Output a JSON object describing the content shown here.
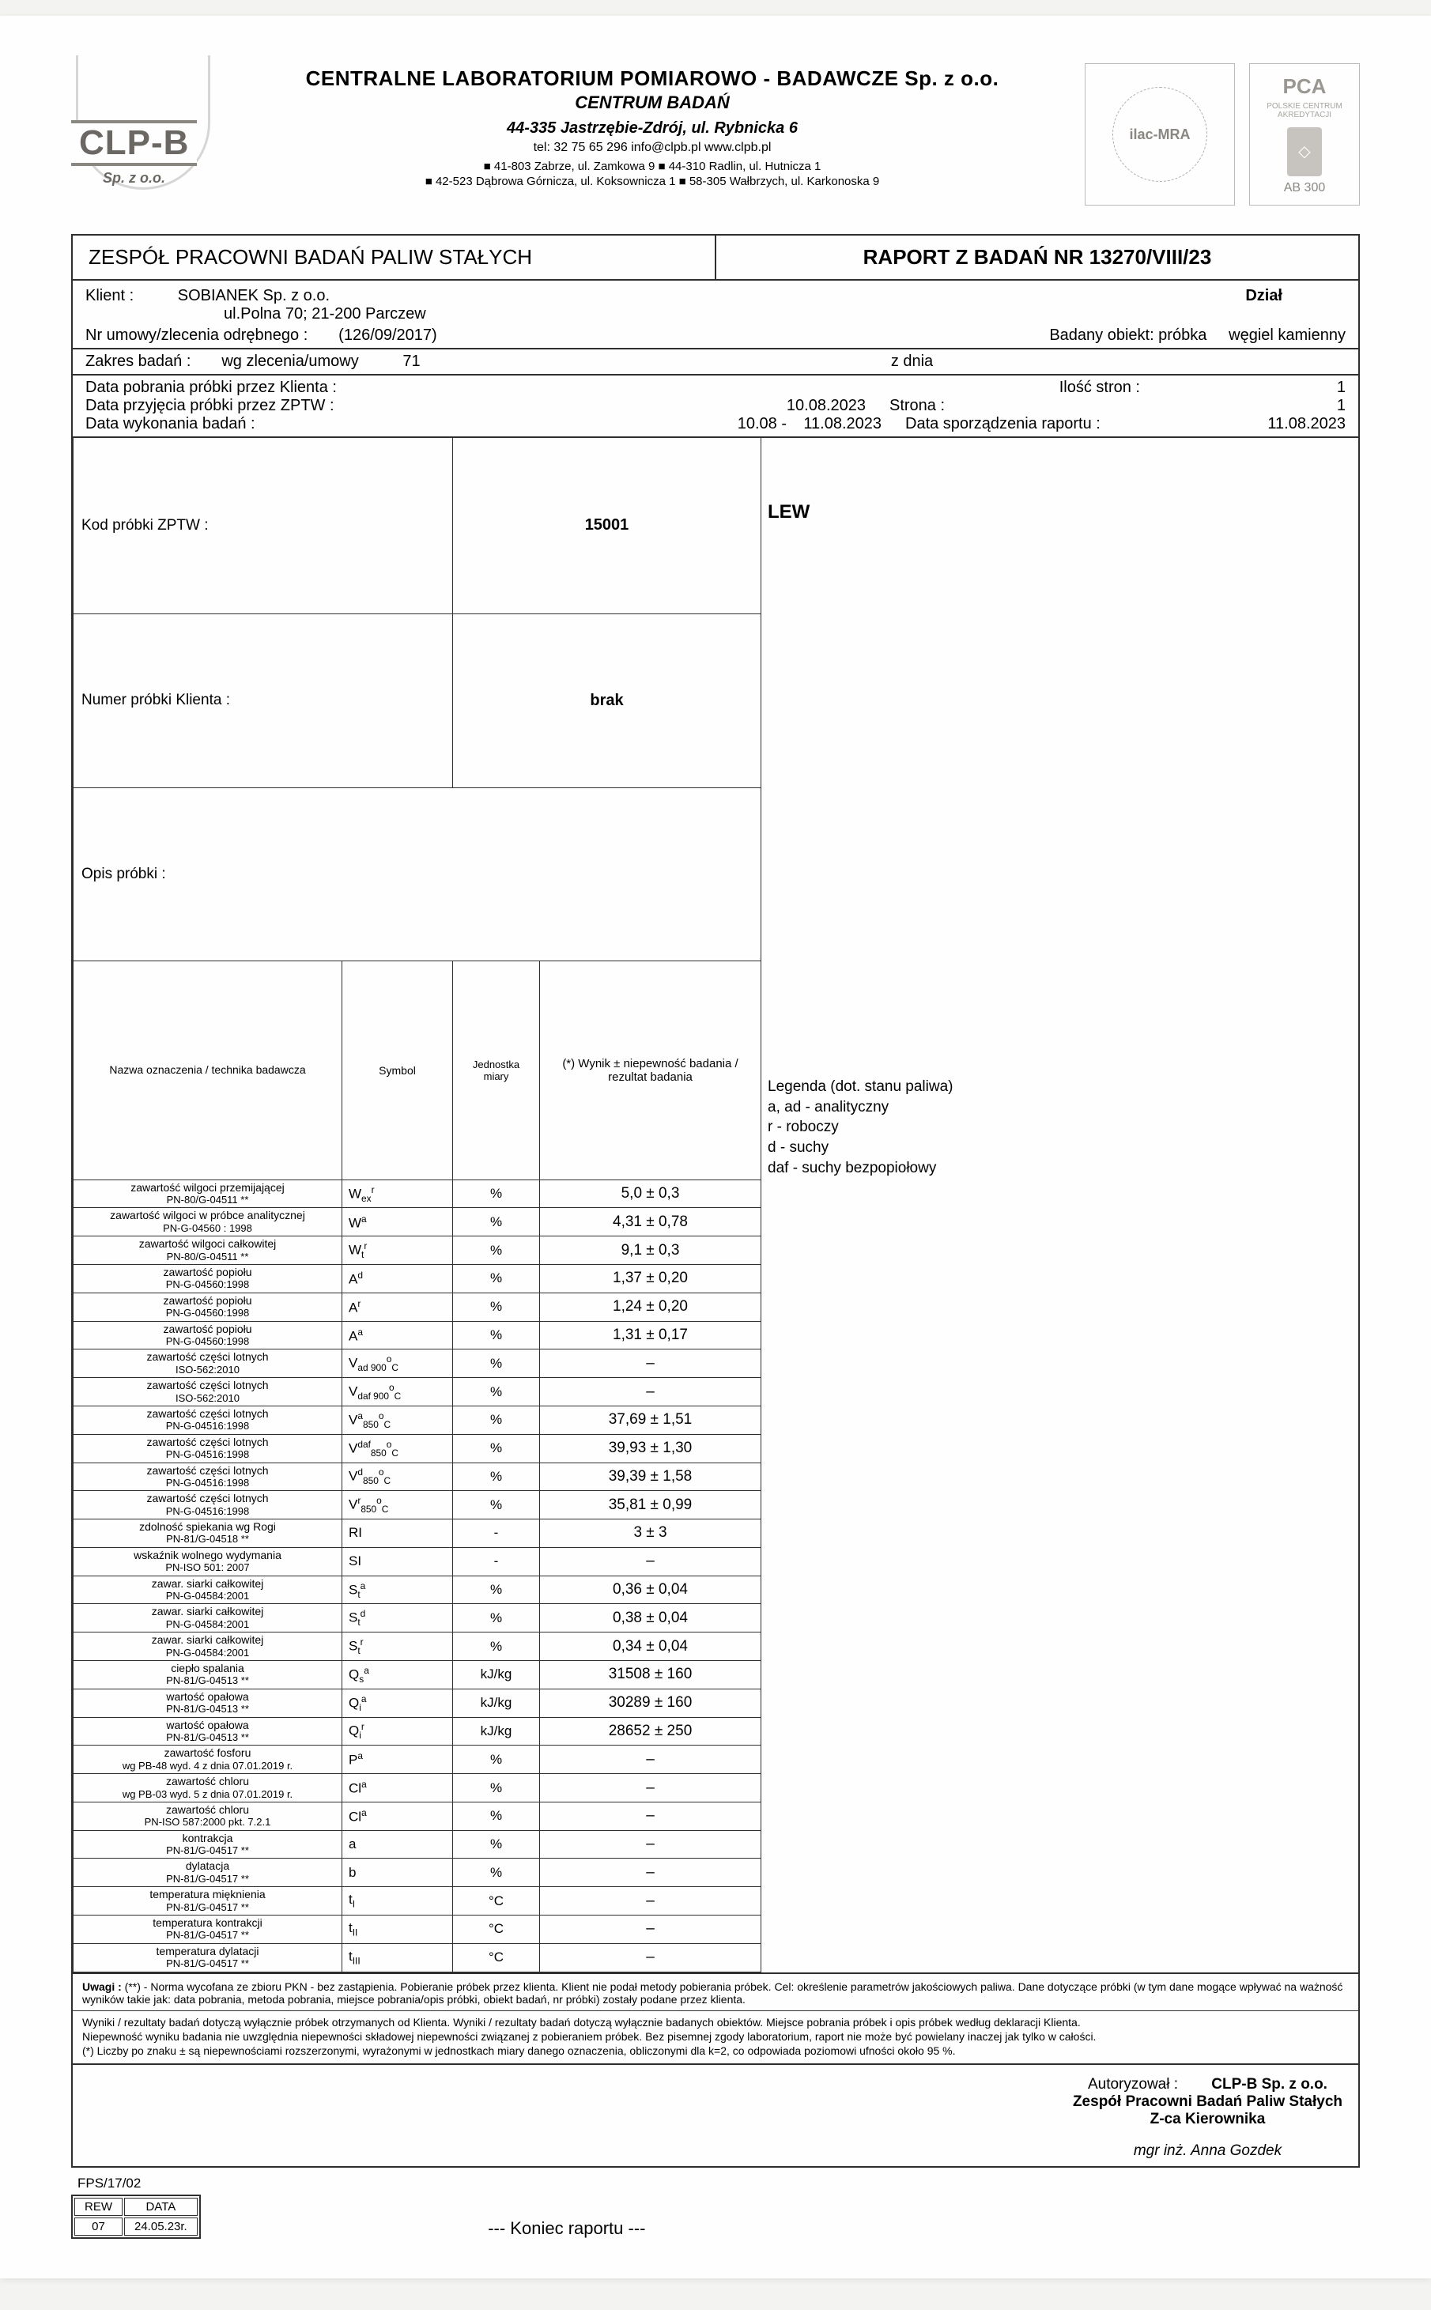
{
  "header": {
    "company_line1": "CENTRALNE LABORATORIUM POMIAROWO - BADAWCZE Sp. z o.o.",
    "company_line2": "CENTRUM BADAŃ",
    "address": "44-335 Jastrzębie-Zdrój, ul. Rybnicka 6",
    "contact": "tel:  32 75 65 296        info@clpb.pl           www.clpb.pl",
    "branches1": "■ 41-803 Zabrze, ul. Zamkowa 9      ■ 44-310 Radlin, ul. Hutnicza 1",
    "branches2": "■ 42-523 Dąbrowa Górnicza, ul. Koksownicza 1  ■ 58-305 Wałbrzych, ul. Karkonoska 9",
    "logo_text": "CLP-B",
    "logo_sub": "Sp. z o.o.",
    "ilac": "ilac-MRA",
    "pca": "PCA",
    "pca_sub": "POLSKIE CENTRUM AKREDYTACJI",
    "pca_ab": "AB 300"
  },
  "title_left": "ZESPÓŁ PRACOWNI BADAŃ PALIW STAŁYCH",
  "title_right": "RAPORT Z BADAŃ NR  13270/VIII/23",
  "meta": {
    "klient_lab": "Klient :",
    "klient_val": "SOBIANEK Sp. z o.o.",
    "klient_addr": "ul.Polna 70; 21-200 Parczew",
    "dzial": "Dział",
    "nr_umowy_lab": "Nr umowy/zlecenia odrębnego :",
    "nr_umowy_val": "(126/09/2017)",
    "badany_obiekt_lab": "Badany obiekt: próbka",
    "badany_obiekt_val": "węgiel kamienny",
    "zakres_lab": "Zakres badań :",
    "zakres_mid": "wg zlecenia/umowy",
    "zakres_nr": "71",
    "z_dnia": "z dnia",
    "d1_lab": "Data pobrania próbki przez Klienta :",
    "ilosc_lab": "Ilość stron :",
    "ilosc_val": "1",
    "d2_lab": "Data przyjęcia próbki przez ZPTW :",
    "d2_val": "10.08.2023",
    "strona_lab": "Strona :",
    "strona_val": "1",
    "d3_lab": "Data wykonania badań :",
    "d3_range": "10.08 -",
    "d3_val": "11.08.2023",
    "sporz_lab": "Data sporządzenia raportu :",
    "sporz_val": "11.08.2023",
    "kod_lab": "Kod próbki  ZPTW :",
    "kod_val": "15001",
    "numer_lab": "Numer próbki Klienta :",
    "numer_val": "brak",
    "opis_lab": "Opis próbki :",
    "opis_val": "LEW"
  },
  "table": {
    "h_name": "Nazwa oznaczenia / technika badawcza",
    "h_sym": "Symbol",
    "h_unit": "Jednostka miary",
    "h_val": "(*) Wynik ± niepewność badania / rezultat badania",
    "rows": [
      {
        "n": "zawartość wilgoci przemijającej",
        "s": "PN-80/G-04511 **",
        "sym": "W<sub>ex</sub><sup>r</sup>",
        "u": "%",
        "v": "5,0 ± 0,3"
      },
      {
        "n": "zawartość wilgoci w próbce analitycznej",
        "s": "PN-G-04560 : 1998",
        "sym": "W<sup>a</sup>",
        "u": "%",
        "v": "4,31 ± 0,78"
      },
      {
        "n": "zawartość wilgoci całkowitej",
        "s": "PN-80/G-04511 **",
        "sym": "W<sub>t</sub><sup>r</sup>",
        "u": "%",
        "v": "9,1 ± 0,3"
      },
      {
        "n": "zawartość popiołu",
        "s": "PN-G-04560:1998",
        "sym": "A<sup>d</sup>",
        "u": "%",
        "v": "1,37 ± 0,20"
      },
      {
        "n": "zawartość popiołu",
        "s": "PN-G-04560:1998",
        "sym": "A<sup>r</sup>",
        "u": "%",
        "v": "1,24 ± 0,20"
      },
      {
        "n": "zawartość popiołu",
        "s": "PN-G-04560:1998",
        "sym": "A<sup>a</sup>",
        "u": "%",
        "v": "1,31 ± 0,17"
      },
      {
        "n": "zawartość części lotnych",
        "s": "ISO-562:2010",
        "sym": "V<sub>ad 900</sub><sup>o</sup><sub>C</sub>",
        "u": "%",
        "v": "–"
      },
      {
        "n": "zawartość części lotnych",
        "s": "ISO-562:2010",
        "sym": "V<sub>daf 900</sub><sup>o</sup><sub>C</sub>",
        "u": "%",
        "v": "–"
      },
      {
        "n": "zawartość części lotnych",
        "s": "PN-G-04516:1998",
        "sym": "V<sup>a</sup><sub>850</sub><sup>o</sup><sub>C</sub>",
        "u": "%",
        "v": "37,69 ± 1,51"
      },
      {
        "n": "zawartość części lotnych",
        "s": "PN-G-04516:1998",
        "sym": "V<sup>daf</sup><sub>850</sub><sup>o</sup><sub>C</sub>",
        "u": "%",
        "v": "39,93 ± 1,30"
      },
      {
        "n": "zawartość części lotnych",
        "s": "PN-G-04516:1998",
        "sym": "V<sup>d</sup><sub>850</sub><sup>o</sup><sub>C</sub>",
        "u": "%",
        "v": "39,39 ± 1,58"
      },
      {
        "n": "zawartość części lotnych",
        "s": "PN-G-04516:1998",
        "sym": "V<sup>r</sup><sub>850</sub><sup>o</sup><sub>C</sub>",
        "u": "%",
        "v": "35,81 ± 0,99"
      },
      {
        "n": "zdolność spiekania wg Rogi",
        "s": "PN-81/G-04518 **",
        "sym": "RI",
        "u": "-",
        "v": "3 ± 3"
      },
      {
        "n": "wskaźnik wolnego wydymania",
        "s": "PN-ISO 501: 2007",
        "sym": "SI",
        "u": "-",
        "v": "–"
      },
      {
        "n": "zawar. siarki całkowitej",
        "s": "PN-G-04584:2001",
        "sym": "S<sub>t</sub><sup>a</sup>",
        "u": "%",
        "v": "0,36 ± 0,04"
      },
      {
        "n": "zawar. siarki całkowitej",
        "s": "PN-G-04584:2001",
        "sym": "S<sub>t</sub><sup>d</sup>",
        "u": "%",
        "v": "0,38 ± 0,04"
      },
      {
        "n": "zawar. siarki całkowitej",
        "s": "PN-G-04584:2001",
        "sym": "S<sub>t</sub><sup>r</sup>",
        "u": "%",
        "v": "0,34 ± 0,04"
      },
      {
        "n": "ciepło spalania",
        "s": "PN-81/G-04513 **",
        "sym": "Q<sub>s</sub><sup>a</sup>",
        "u": "kJ/kg",
        "v": "31508 ± 160"
      },
      {
        "n": "wartość opałowa",
        "s": "PN-81/G-04513 **",
        "sym": "Q<sub>i</sub><sup>a</sup>",
        "u": "kJ/kg",
        "v": "30289 ± 160"
      },
      {
        "n": "wartość opałowa",
        "s": "PN-81/G-04513 **",
        "sym": "Q<sub>i</sub><sup>r</sup>",
        "u": "kJ/kg",
        "v": "28652 ± 250"
      },
      {
        "n": "zawartość fosforu",
        "s": "wg PB-48 wyd. 4 z dnia 07.01.2019 r.",
        "sym": "P<sup>a</sup>",
        "u": "%",
        "v": "–"
      },
      {
        "n": "zawartość chloru",
        "s": "wg PB-03 wyd. 5 z dnia 07.01.2019 r.",
        "sym": "Cl<sup>a</sup>",
        "u": "%",
        "v": "–"
      },
      {
        "n": "zawartość chloru",
        "s": "PN-ISO 587:2000 pkt. 7.2.1",
        "sym": "Cl<sup>a</sup>",
        "u": "%",
        "v": "–"
      },
      {
        "n": "kontrakcja",
        "s": "PN-81/G-04517 **",
        "sym": "a",
        "u": "%",
        "v": "–"
      },
      {
        "n": "dylatacja",
        "s": "PN-81/G-04517 **",
        "sym": "b",
        "u": "%",
        "v": "–"
      },
      {
        "n": "temperatura mięknienia",
        "s": "PN-81/G-04517 **",
        "sym": "t<sub>I</sub>",
        "u": "°C",
        "v": "–"
      },
      {
        "n": "temperatura kontrakcji",
        "s": "PN-81/G-04517 **",
        "sym": "t<sub>II</sub>",
        "u": "°C",
        "v": "–"
      },
      {
        "n": "temperatura dylatacji",
        "s": "PN-81/G-04517 **",
        "sym": "t<sub>III</sub>",
        "u": "°C",
        "v": "–"
      }
    ]
  },
  "legend": {
    "title": "Legenda (dot. stanu paliwa)",
    "l1": "a, ad - analityczny",
    "l2": "r - roboczy",
    "l3": "d - suchy",
    "l4": "daf - suchy bezpopiołowy"
  },
  "notes": {
    "uwagi_lab": "Uwagi :",
    "u1": "(**) - Norma wycofana ze zbioru PKN - bez zastąpienia. Pobieranie próbek przez klienta. Klient nie podał metody pobierania próbek. Cel: określenie parametrów jakościowych paliwa. Dane dotyczące próbki (w tym dane mogące wpływać na ważność wyników takie jak: data pobrania, metoda pobrania, miejsce pobrania/opis próbki, obiekt badań, nr próbki) zostały podane przez klienta.",
    "u2": "Wyniki / rezultaty badań dotyczą wyłącznie próbek otrzymanych od Klienta. Wyniki / rezultaty badań dotyczą wyłącznie badanych obiektów. Miejsce pobrania próbek i opis próbek według deklaracji Klienta.",
    "u3": "Niepewność wyniku badania nie uwzględnia niepewności składowej niepewności związanej z pobieraniem próbek.  Bez pisemnej zgody laboratorium, raport nie może być powielany inaczej jak tylko w całości.",
    "u4": "(*) Liczby po znaku ± są niepewnościami rozszerzonymi, wyrażonymi w jednostkach miary danego oznaczenia, obliczonymi dla k=2, co odpowiada poziomowi ufności około  95 %."
  },
  "footer": {
    "auth_lab": "Autoryzował :",
    "auth1": "CLP-B Sp. z o.o.",
    "auth2": "Zespół Pracowni Badań Paliw Stałych",
    "auth3": "Z-ca Kierownika",
    "sign": "mgr inż. Anna Gozdek",
    "fps": "FPS/17/02",
    "rew": "REW",
    "data": "DATA",
    "rew_n": "07",
    "rew_d": "24.05.23r.",
    "koniec": "--- Koniec raportu ---"
  }
}
